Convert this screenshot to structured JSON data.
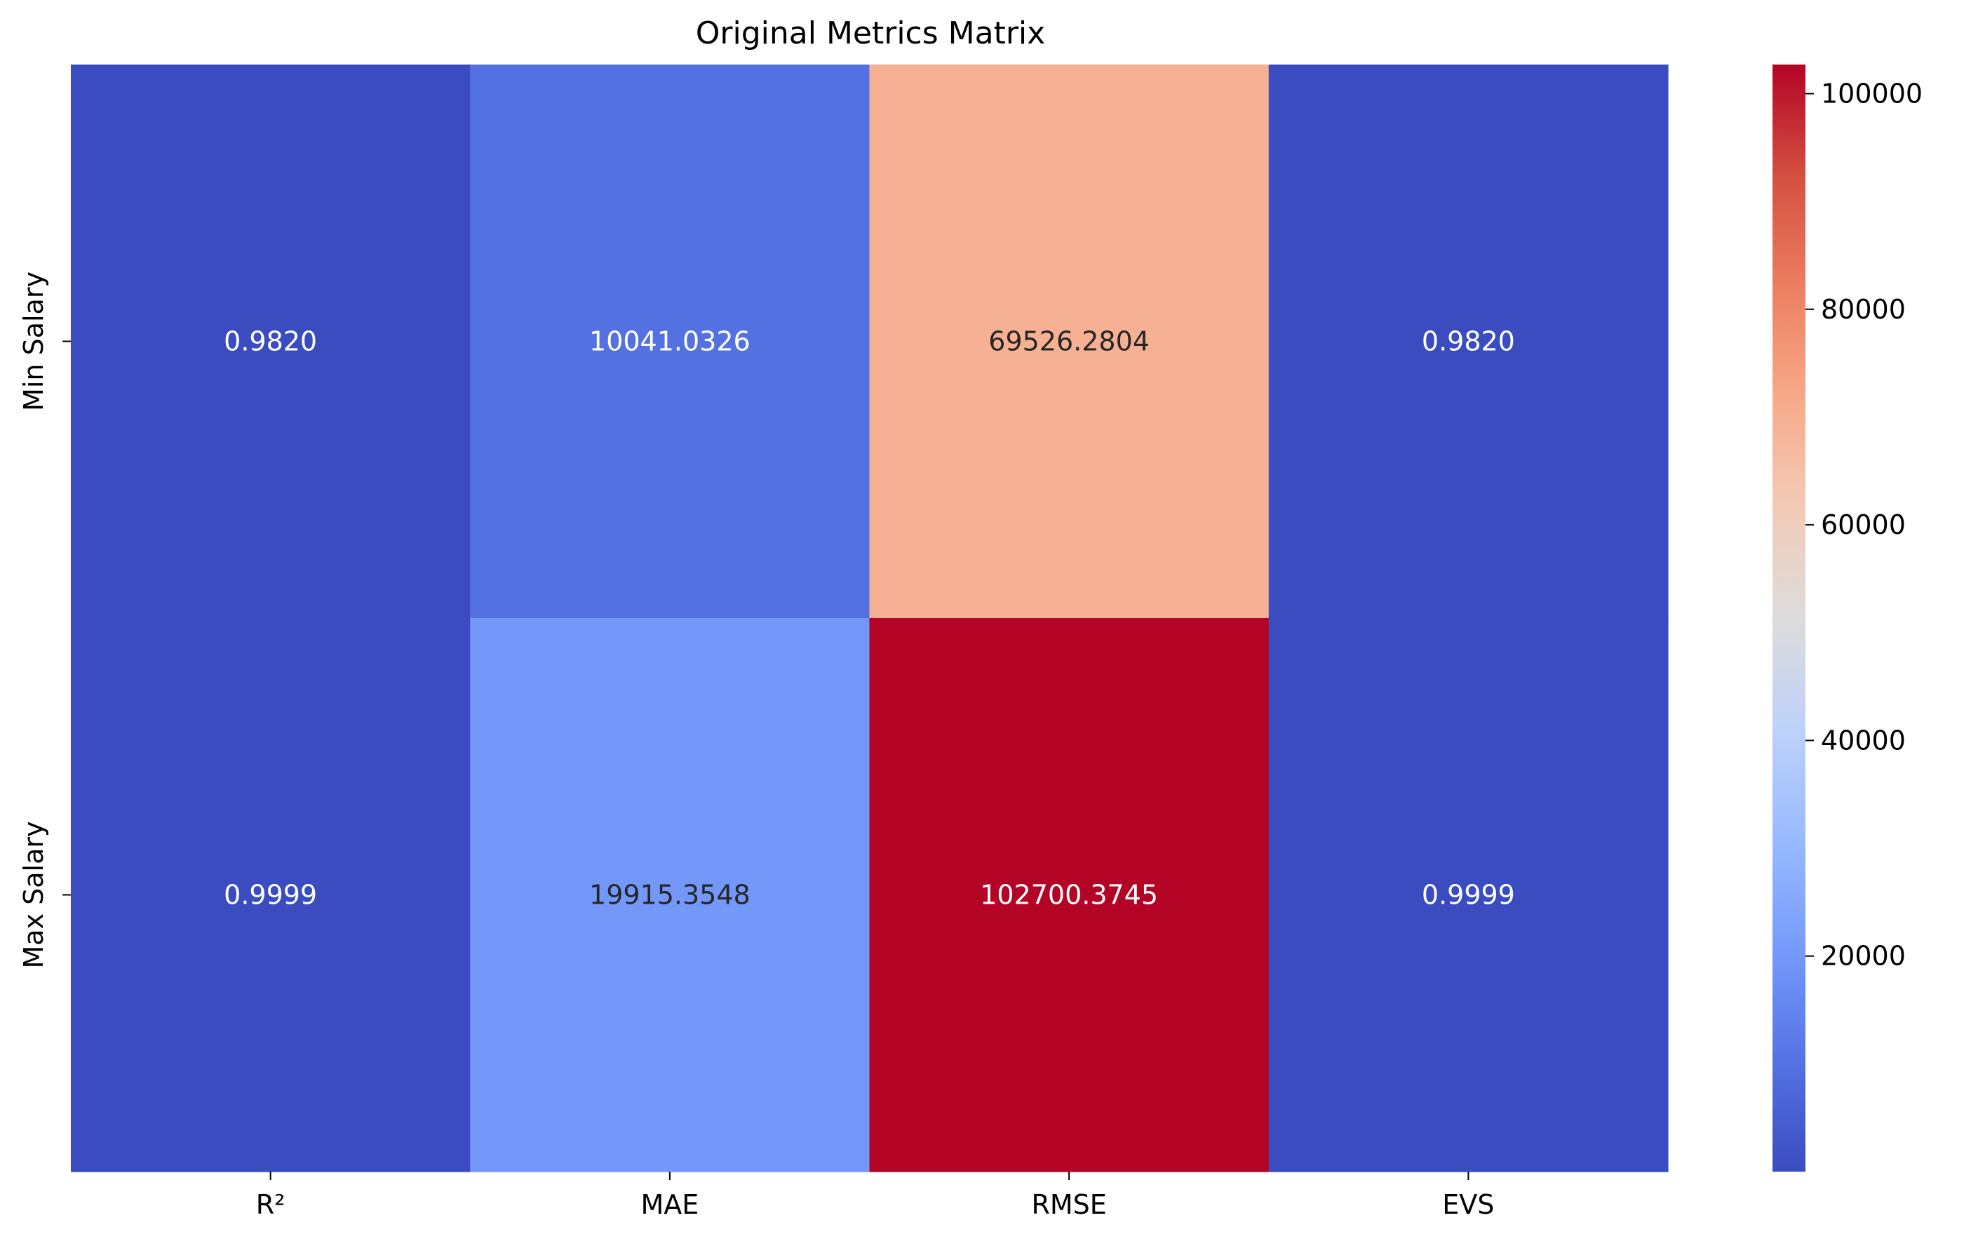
{
  "chart_data": {
    "type": "heatmap",
    "title": "Original Metrics Matrix",
    "xlabel": "",
    "ylabel": "",
    "x_categories": [
      "R²",
      "MAE",
      "RMSE",
      "EVS"
    ],
    "y_categories": [
      "Min Salary",
      "Max Salary"
    ],
    "values": [
      [
        0.982,
        10041.0326,
        69526.2804,
        0.982
      ],
      [
        0.9999,
        19915.3548,
        102700.3745,
        0.9999
      ]
    ],
    "cell_labels": [
      [
        "0.9820",
        "10041.0326",
        "69526.2804",
        "0.9820"
      ],
      [
        "0.9999",
        "19915.3548",
        "102700.3745",
        "0.9999"
      ]
    ],
    "colormap": "coolwarm",
    "color_range": [
      0.982,
      102700.3745
    ],
    "colorbar_ticks": [
      20000,
      40000,
      60000,
      80000,
      100000
    ],
    "colorbar_tick_labels": [
      "20000",
      "40000",
      "60000",
      "80000",
      "100000"
    ],
    "grid": false,
    "legend": "colorbar-right"
  }
}
